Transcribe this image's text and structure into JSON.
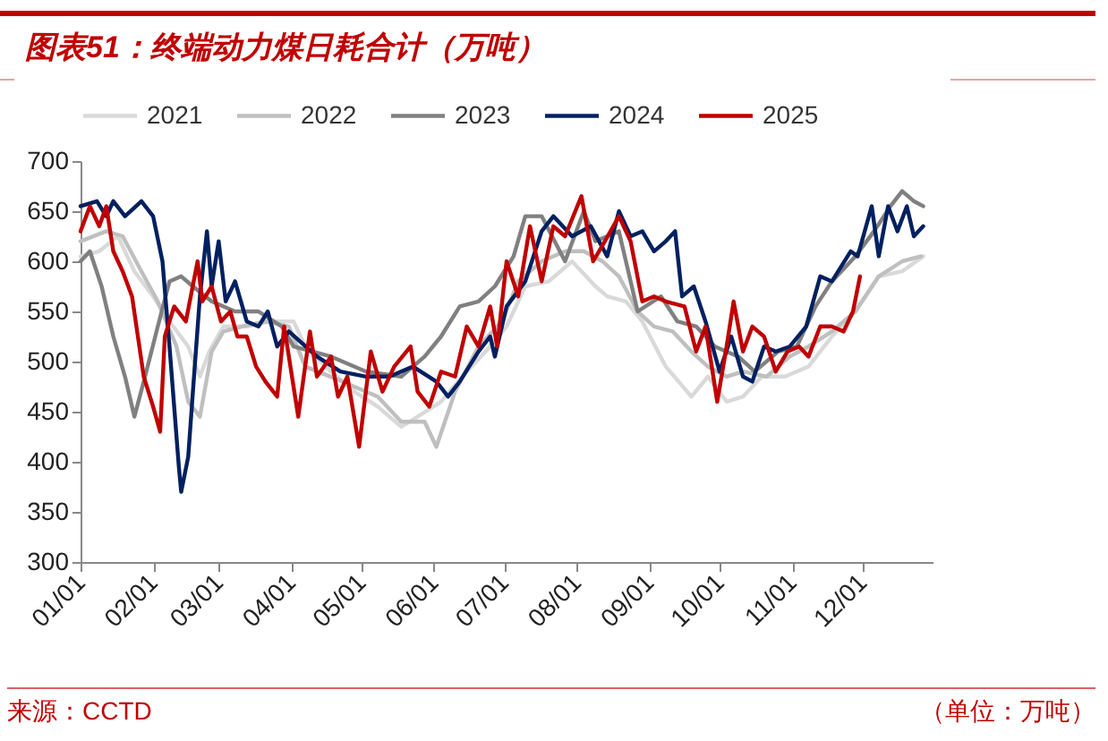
{
  "chart_data": {
    "type": "line",
    "title": "图表51：终端动力煤日耗合计（万吨）",
    "annotations": [
      "来源：CCTD",
      "（单位：万吨）"
    ],
    "xlim": [
      "--01-01",
      "--12-31"
    ],
    "xticks": [
      {
        "value": "--01-01",
        "label": "01/01"
      },
      {
        "value": "--02-01",
        "label": "02/01"
      },
      {
        "value": "--03-01",
        "label": "03/01"
      },
      {
        "value": "--04-01",
        "label": "04/01"
      },
      {
        "value": "--05-01",
        "label": "05/01"
      },
      {
        "value": "--06-01",
        "label": "06/01"
      },
      {
        "value": "--07-01",
        "label": "07/01"
      },
      {
        "value": "--08-01",
        "label": "08/01"
      },
      {
        "value": "--09-01",
        "label": "09/01"
      },
      {
        "value": "--10-01",
        "label": "10/01"
      },
      {
        "value": "--11-01",
        "label": "11/01"
      },
      {
        "value": "--12-01",
        "label": "12/01"
      }
    ],
    "ylim": [
      300,
      700
    ],
    "yticks": [
      300,
      350,
      400,
      450,
      500,
      550,
      600,
      650,
      700
    ],
    "grid": false,
    "legend": "top",
    "series": [
      {
        "name": "2021",
        "color": "#d9d9d9",
        "x": [
          "--01-01",
          "--01-09",
          "--01-17",
          "--01-24",
          "--02-01",
          "--02-08",
          "--02-16",
          "--02-21",
          "--02-25",
          "--03-03",
          "--03-13",
          "--03-23",
          "--04-02",
          "--04-07",
          "--04-18",
          "--04-28",
          "--05-08",
          "--05-18",
          "--05-25",
          "--06-04",
          "--06-15",
          "--06-25",
          "--07-02",
          "--07-10",
          "--07-20",
          "--07-30",
          "--08-09",
          "--08-14",
          "--08-22",
          "--08-29",
          "--09-08",
          "--09-19",
          "--09-26",
          "--10-04",
          "--10-11",
          "--10-19",
          "--10-29",
          "--11-08",
          "--11-18",
          "--11-28",
          "--12-08",
          "--12-18",
          "--12-27"
        ],
        "values": [
          605,
          610,
          625,
          590,
          565,
          540,
          515,
          485,
          510,
          535,
          535,
          540,
          540,
          515,
          490,
          470,
          455,
          435,
          445,
          460,
          490,
          515,
          535,
          575,
          580,
          600,
          575,
          565,
          560,
          540,
          495,
          465,
          485,
          460,
          465,
          485,
          485,
          495,
          525,
          550,
          585,
          590,
          605
        ]
      },
      {
        "name": "2022",
        "color": "#bfbfbf",
        "x": [
          "--01-01",
          "--01-12",
          "--01-19",
          "--01-27",
          "--02-03",
          "--02-11",
          "--02-16",
          "--02-21",
          "--02-26",
          "--03-03",
          "--03-11",
          "--03-21",
          "--03-31",
          "--04-07",
          "--04-23",
          "--05-08",
          "--05-18",
          "--05-28",
          "--06-02",
          "--06-10",
          "--06-20",
          "--06-30",
          "--07-07",
          "--07-17",
          "--07-27",
          "--08-04",
          "--08-12",
          "--08-19",
          "--08-27",
          "--09-03",
          "--09-11",
          "--09-19",
          "--09-26",
          "--10-04",
          "--10-11",
          "--10-21",
          "--10-31",
          "--11-08",
          "--11-18",
          "--11-28",
          "--12-08",
          "--12-18",
          "--12-26"
        ],
        "values": [
          620,
          630,
          625,
          590,
          560,
          515,
          460,
          445,
          510,
          530,
          535,
          540,
          535,
          495,
          480,
          465,
          440,
          440,
          415,
          470,
          515,
          540,
          580,
          600,
          610,
          610,
          600,
          585,
          550,
          535,
          530,
          510,
          495,
          485,
          490,
          485,
          505,
          515,
          530,
          550,
          585,
          600,
          605
        ]
      },
      {
        "name": "2023",
        "color": "#808080",
        "x": [
          "--01-01",
          "--01-05",
          "--01-10",
          "--01-15",
          "--01-20",
          "--01-24",
          "--01-28",
          "--02-03",
          "--02-08",
          "--02-13",
          "--02-18",
          "--02-26",
          "--03-08",
          "--03-18",
          "--03-28",
          "--04-02",
          "--04-18",
          "--05-03",
          "--05-18",
          "--05-28",
          "--06-04",
          "--06-12",
          "--06-20",
          "--06-27",
          "--07-05",
          "--07-10",
          "--07-17",
          "--07-27",
          "--08-04",
          "--08-09",
          "--08-19",
          "--08-27",
          "--09-06",
          "--09-13",
          "--09-21",
          "--09-29",
          "--10-09",
          "--10-16",
          "--10-26",
          "--11-03",
          "--11-11",
          "--11-18",
          "--11-28",
          "--12-06",
          "--12-13",
          "--12-18",
          "--12-23",
          "--12-27"
        ],
        "values": [
          600,
          610,
          575,
          525,
          485,
          445,
          480,
          535,
          580,
          585,
          575,
          560,
          550,
          550,
          535,
          515,
          505,
          490,
          485,
          505,
          525,
          555,
          560,
          575,
          605,
          645,
          645,
          600,
          650,
          620,
          630,
          550,
          565,
          540,
          535,
          515,
          505,
          490,
          510,
          515,
          555,
          580,
          605,
          630,
          655,
          670,
          660,
          655
        ]
      },
      {
        "name": "2024",
        "color": "#002060",
        "x": [
          "--01-01",
          "--01-08",
          "--01-12",
          "--01-15",
          "--01-20",
          "--01-27",
          "--02-01",
          "--02-05",
          "--02-08",
          "--02-12",
          "--02-13",
          "--02-16",
          "--02-18",
          "--02-21",
          "--02-24",
          "--02-26",
          "--03-01",
          "--03-04",
          "--03-08",
          "--03-13",
          "--03-18",
          "--03-22",
          "--03-26",
          "--03-31",
          "--04-12",
          "--04-22",
          "--05-03",
          "--05-13",
          "--05-23",
          "--06-02",
          "--06-07",
          "--06-12",
          "--06-20",
          "--06-25",
          "--06-27",
          "--07-02",
          "--07-10",
          "--07-17",
          "--07-22",
          "--07-30",
          "--08-07",
          "--08-14",
          "--08-19",
          "--08-24",
          "--08-29",
          "--09-03",
          "--09-08",
          "--09-12",
          "--09-15",
          "--09-20",
          "--09-25",
          "--10-01",
          "--10-06",
          "--10-11",
          "--10-15",
          "--10-20",
          "--10-25",
          "--10-31",
          "--11-07",
          "--11-13",
          "--11-18",
          "--11-26",
          "--11-29",
          "--12-05",
          "--12-08",
          "--12-12",
          "--12-16",
          "--12-20",
          "--12-23",
          "--12-27"
        ],
        "values": [
          655,
          660,
          645,
          660,
          645,
          660,
          645,
          600,
          515,
          395,
          370,
          405,
          470,
          565,
          630,
          575,
          620,
          560,
          580,
          540,
          535,
          550,
          515,
          530,
          505,
          490,
          485,
          485,
          495,
          480,
          465,
          480,
          510,
          525,
          505,
          555,
          580,
          630,
          645,
          625,
          635,
          605,
          650,
          625,
          630,
          610,
          620,
          630,
          565,
          575,
          540,
          490,
          525,
          485,
          480,
          515,
          510,
          515,
          535,
          585,
          580,
          610,
          605,
          655,
          605,
          655,
          630,
          655,
          625,
          635
        ]
      },
      {
        "name": "2025",
        "color": "#c00000",
        "x": [
          "--01-01",
          "--01-05",
          "--01-09",
          "--01-12",
          "--01-15",
          "--01-19",
          "--01-23",
          "--01-28",
          "--02-01",
          "--02-04",
          "--02-06",
          "--02-10",
          "--02-15",
          "--02-20",
          "--02-22",
          "--02-26",
          "--03-02",
          "--03-06",
          "--03-09",
          "--03-13",
          "--03-17",
          "--03-21",
          "--03-26",
          "--03-29",
          "--04-04",
          "--04-09",
          "--04-12",
          "--04-18",
          "--04-21",
          "--04-25",
          "--04-30",
          "--05-05",
          "--05-10",
          "--05-15",
          "--05-22",
          "--05-25",
          "--05-30",
          "--06-04",
          "--06-10",
          "--06-15",
          "--06-20",
          "--06-25",
          "--06-28",
          "--07-02",
          "--07-07",
          "--07-12",
          "--07-17",
          "--07-22",
          "--07-27",
          "--08-03",
          "--08-08",
          "--08-13",
          "--08-19",
          "--08-24",
          "--08-29",
          "--09-03",
          "--09-08",
          "--09-16",
          "--09-21",
          "--09-25",
          "--09-30",
          "--10-04",
          "--10-07",
          "--10-11",
          "--10-15",
          "--10-20",
          "--10-25",
          "--10-30",
          "--11-04",
          "--11-08",
          "--11-13",
          "--11-18",
          "--11-23",
          "--11-27",
          "--11-30"
        ],
        "values": [
          630,
          655,
          635,
          655,
          610,
          590,
          565,
          485,
          455,
          430,
          525,
          555,
          540,
          600,
          560,
          575,
          540,
          550,
          525,
          525,
          495,
          480,
          465,
          535,
          445,
          530,
          485,
          505,
          465,
          485,
          415,
          510,
          470,
          495,
          515,
          470,
          455,
          490,
          485,
          535,
          515,
          555,
          515,
          600,
          565,
          635,
          580,
          635,
          625,
          665,
          600,
          620,
          645,
          620,
          560,
          565,
          560,
          555,
          510,
          535,
          460,
          515,
          560,
          510,
          535,
          525,
          490,
          510,
          515,
          505,
          535,
          535,
          530,
          550,
          585
        ]
      }
    ]
  }
}
